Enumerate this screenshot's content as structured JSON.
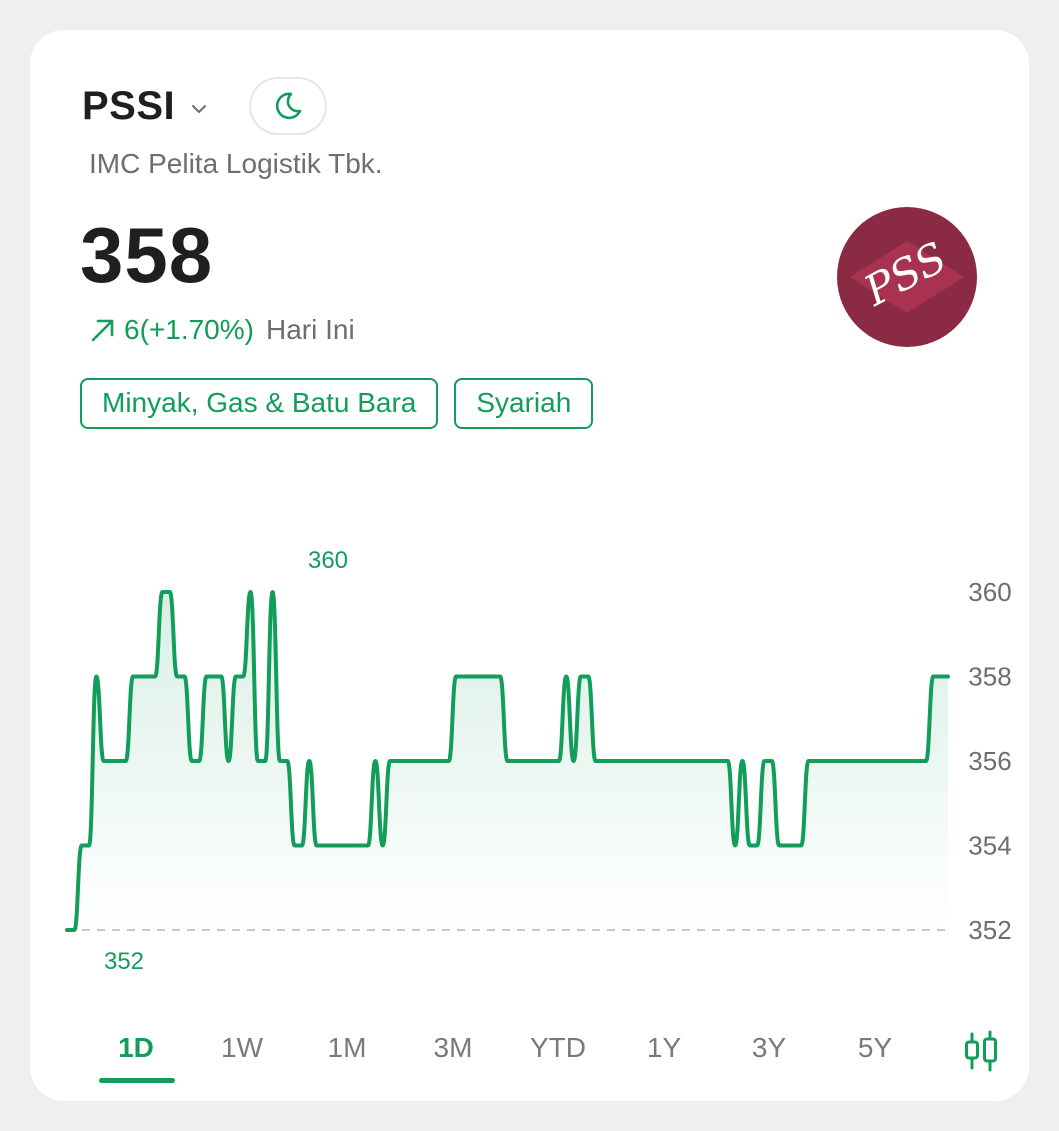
{
  "header": {
    "ticker": "PSSI",
    "company": "IMC Pelita Logistik Tbk."
  },
  "quote": {
    "price": "358",
    "change": "6(+1.70%)",
    "period_label": "Hari Ini"
  },
  "logo": {
    "text": "PSS",
    "color": "#8b2a45"
  },
  "tags": [
    "Minyak, Gas & Batu Bara",
    "Syariah"
  ],
  "periods": [
    "1D",
    "1W",
    "1M",
    "3M",
    "YTD",
    "1Y",
    "3Y",
    "5Y"
  ],
  "active_period": "1D",
  "colors": {
    "accent": "#139d5b",
    "text": "#1f1f1f",
    "muted": "#6e6e6e"
  },
  "chart_data": {
    "type": "line",
    "series": [
      {
        "values": [
          352,
          352,
          354,
          354,
          358,
          356,
          356,
          356,
          356,
          358,
          358,
          358,
          358,
          360,
          360,
          358,
          358,
          356,
          356,
          358,
          358,
          358,
          356,
          358,
          358,
          360,
          356,
          356,
          360,
          356,
          356,
          354,
          354,
          356,
          354,
          354,
          354,
          354,
          354,
          354,
          354,
          354,
          356,
          354,
          356,
          356,
          356,
          356,
          356,
          356,
          356,
          356,
          356,
          358,
          358,
          358,
          358,
          358,
          358,
          358,
          356,
          356,
          356,
          356,
          356,
          356,
          356,
          356,
          358,
          356,
          358,
          358,
          356,
          356,
          356,
          356,
          356,
          356,
          356,
          356,
          356,
          356,
          356,
          356,
          356,
          356,
          356,
          356,
          356,
          356,
          356,
          354,
          356,
          354,
          354,
          356,
          356,
          354,
          354,
          354,
          354,
          356,
          356,
          356,
          356,
          356,
          356,
          356,
          356,
          356,
          356,
          356,
          356,
          356,
          356,
          356,
          356,
          356,
          358,
          358,
          358
        ]
      }
    ],
    "ylim": [
      352,
      360
    ],
    "y_ticks": [
      360,
      358,
      356,
      354,
      352
    ],
    "baseline": 352,
    "high_label": "360",
    "low_label": "352",
    "grid": false
  }
}
